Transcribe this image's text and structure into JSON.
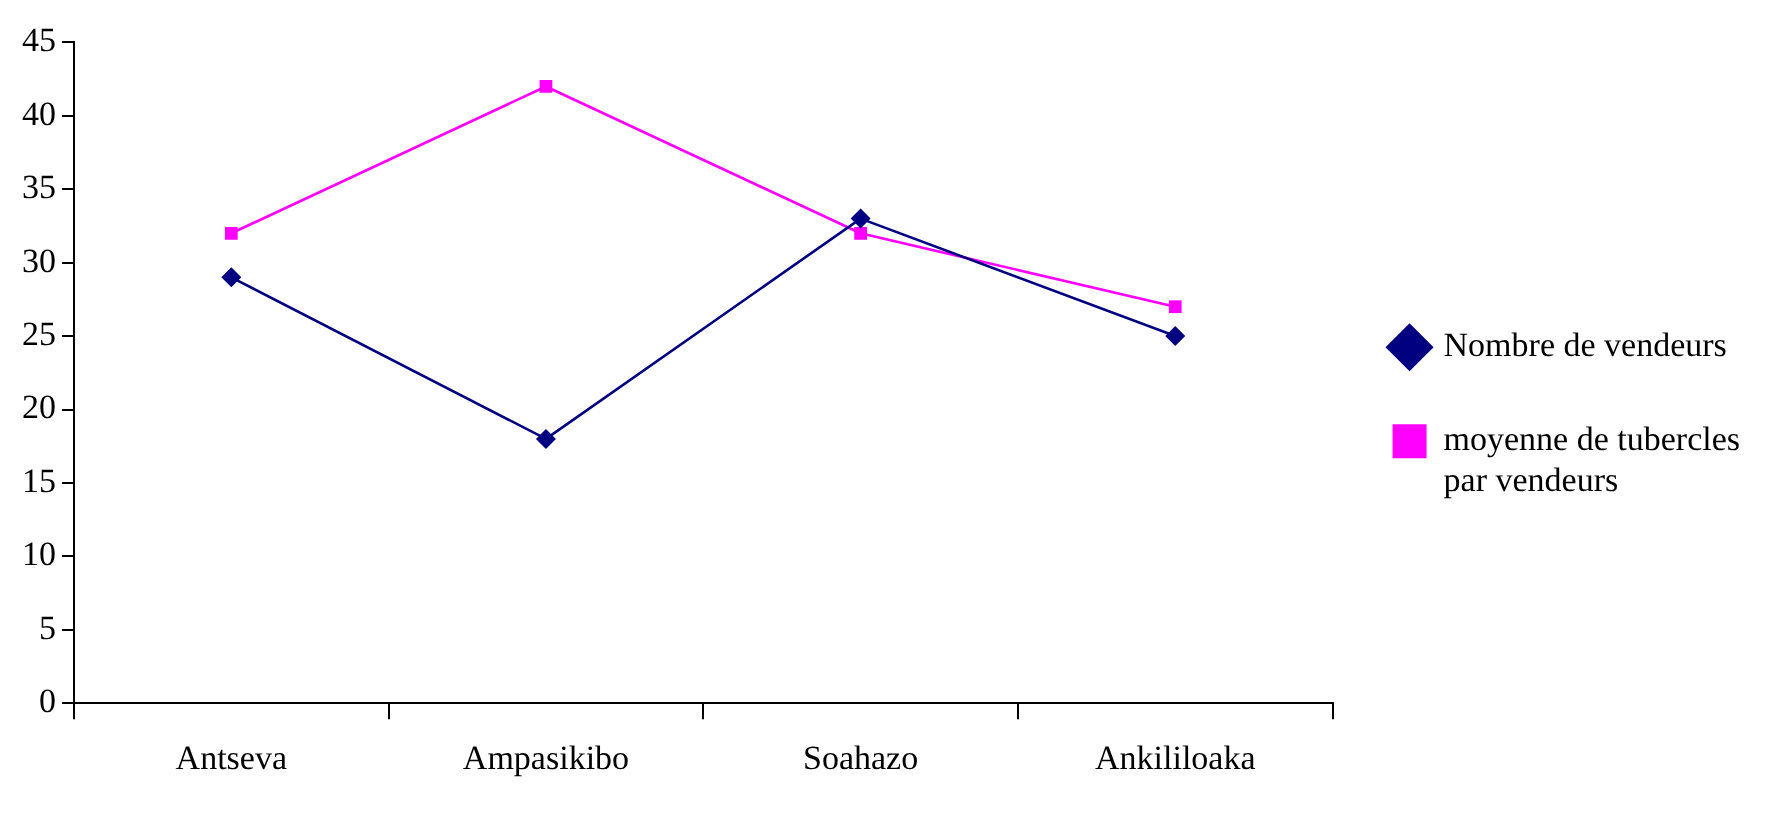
{
  "chart_data": {
    "type": "line",
    "categories": [
      "Antseva",
      "Ampasikibo",
      "Soahazo",
      "Ankililoaka"
    ],
    "series": [
      {
        "name": "Nombre de vendeurs",
        "color": "#000080",
        "marker": "diamond",
        "values": [
          29,
          18,
          33,
          25
        ]
      },
      {
        "name": "moyenne de tubercles par vendeurs",
        "color": "#ff00ff",
        "marker": "square",
        "values": [
          32,
          42,
          32,
          27
        ]
      }
    ],
    "ylim": [
      0,
      45
    ],
    "yticks": [
      0,
      5,
      10,
      15,
      20,
      25,
      30,
      35,
      40,
      45
    ],
    "grid": false,
    "legend": "right",
    "line_style": "solid"
  }
}
